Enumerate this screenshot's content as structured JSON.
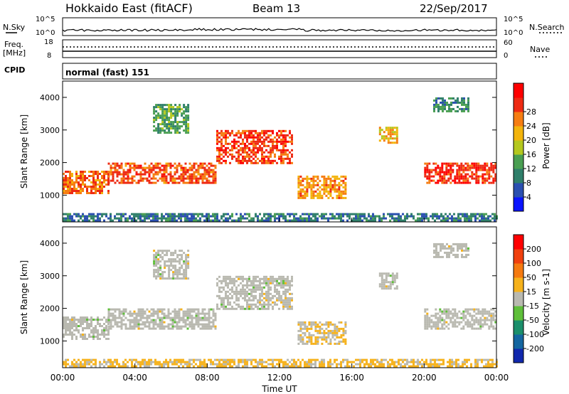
{
  "header": {
    "station": "Hokkaido East (fitACF)",
    "beam": "Beam 13",
    "date": "22/Sep/2017"
  },
  "aux_panels": {
    "nsky_label": "N.Sky",
    "nsearch_label": "N.Search",
    "noise_ticks": [
      "10^5",
      "10^0"
    ],
    "freq_label": "Freq.",
    "freq_unit": "[MHz]",
    "freq_ticks": [
      "18",
      "8"
    ],
    "nave_label": "Nave",
    "nave_ticks": [
      "60",
      "0"
    ],
    "cpid_label": "CPID",
    "cpid_value": "normal (fast) 151"
  },
  "x_axis": {
    "label": "Time UT",
    "ticks": [
      "00:00",
      "04:00",
      "08:00",
      "12:00",
      "16:00",
      "20:00",
      "00:00"
    ]
  },
  "power_colorbar": {
    "label": "Power [dB]",
    "ticks": [
      "4",
      "8",
      "12",
      "16",
      "20",
      "24",
      "28"
    ],
    "colors": [
      "#0a14ff",
      "#2a4fb0",
      "#2f7f6a",
      "#4a9f52",
      "#b4c81e",
      "#f3b40c",
      "#f67d12",
      "#ee2a13",
      "#ff0000"
    ]
  },
  "velocity_colorbar": {
    "label": "Velocity [m s-1]",
    "ticks": [
      "200",
      "100",
      "50",
      "15",
      "-15",
      "-50",
      "-100",
      "-200"
    ],
    "colors": [
      "#1128ad",
      "#1466a0",
      "#1b8f6b",
      "#5fbf3a",
      "#b9b9b0",
      "#f6b21c",
      "#f57a10",
      "#f0400e",
      "#ff0000"
    ]
  },
  "chart_data": [
    {
      "type": "heatmap",
      "title": "Power",
      "xlabel": "Time UT",
      "ylabel": "Slant Range [km]",
      "xlim": [
        0,
        24
      ],
      "ylim": [
        180,
        4500
      ],
      "yticks": [
        1000,
        2000,
        3000,
        4000
      ],
      "colorbar_range_db": [
        0,
        32
      ],
      "echo_regions": [
        {
          "t": [
            0,
            2.5
          ],
          "range": [
            1050,
            1750
          ],
          "power_db": 24
        },
        {
          "t": [
            2.5,
            8.5
          ],
          "range": [
            1350,
            2000
          ],
          "power_db": 25
        },
        {
          "t": [
            8.5,
            12.7
          ],
          "range": [
            2000,
            3000
          ],
          "power_db": 26
        },
        {
          "t": [
            5,
            7
          ],
          "range": [
            2900,
            3800
          ],
          "power_db": 12
        },
        {
          "t": [
            13,
            15.7
          ],
          "range": [
            900,
            1600
          ],
          "power_db": 22
        },
        {
          "t": [
            17.5,
            18.5
          ],
          "range": [
            2600,
            3100
          ],
          "power_db": 20
        },
        {
          "t": [
            20,
            24
          ],
          "range": [
            1400,
            2000
          ],
          "power_db": 27
        },
        {
          "t": [
            20.5,
            22.5
          ],
          "range": [
            3600,
            4000
          ],
          "power_db": 10
        },
        {
          "t": [
            0,
            24
          ],
          "range": [
            200,
            450
          ],
          "power_db": 8
        }
      ]
    },
    {
      "type": "heatmap",
      "title": "Velocity",
      "xlabel": "Time UT",
      "ylabel": "Slant Range [km]",
      "xlim": [
        0,
        24
      ],
      "ylim": [
        180,
        4500
      ],
      "yticks": [
        1000,
        2000,
        3000,
        4000
      ],
      "colorbar_range_ms": [
        -250,
        250
      ],
      "echo_regions": [
        {
          "t": [
            0,
            2.5
          ],
          "range": [
            1050,
            1750
          ],
          "velocity": 0
        },
        {
          "t": [
            2.5,
            8.5
          ],
          "range": [
            1350,
            2000
          ],
          "velocity": 0
        },
        {
          "t": [
            8.5,
            12.7
          ],
          "range": [
            2000,
            3000
          ],
          "velocity": 0
        },
        {
          "t": [
            5,
            7
          ],
          "range": [
            2900,
            3800
          ],
          "velocity": 0
        },
        {
          "t": [
            13,
            15.7
          ],
          "range": [
            900,
            1600
          ],
          "velocity": 30
        },
        {
          "t": [
            17.5,
            18.5
          ],
          "range": [
            2600,
            3100
          ],
          "velocity": 0
        },
        {
          "t": [
            20,
            24
          ],
          "range": [
            1400,
            2000
          ],
          "velocity": 0
        },
        {
          "t": [
            20.5,
            22.5
          ],
          "range": [
            3600,
            4000
          ],
          "velocity": 0
        },
        {
          "t": [
            0,
            24
          ],
          "range": [
            200,
            450
          ],
          "velocity": 40
        }
      ]
    }
  ]
}
